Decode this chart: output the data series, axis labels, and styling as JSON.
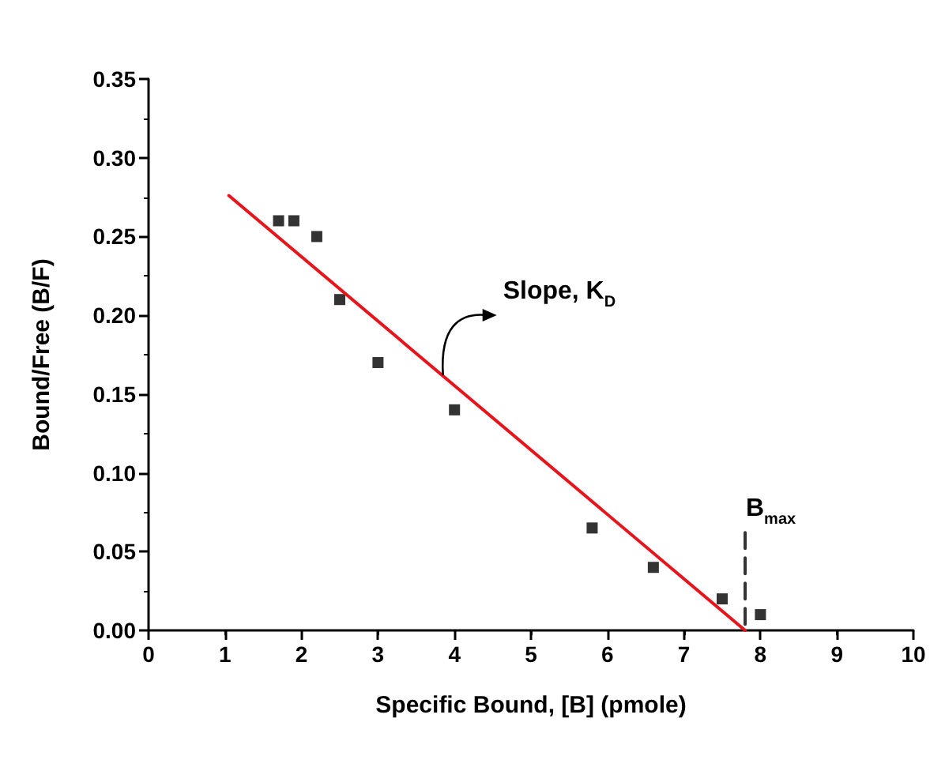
{
  "chart_data": {
    "type": "scatter",
    "xlabel": "Specific Bound, [B] (pmole)",
    "ylabel": "Bound/Free (B/F)",
    "xlim": [
      0,
      10
    ],
    "xticks": [
      0,
      1,
      2,
      3,
      4,
      5,
      6,
      7,
      8,
      9,
      10
    ],
    "ylim": [
      0,
      0.35
    ],
    "yticks": [
      {
        "value": 0,
        "label": "0.00"
      },
      {
        "value": 0.05,
        "label": "0.05"
      },
      {
        "value": 0.1,
        "label": "0.10"
      },
      {
        "value": 0.15,
        "label": "0.15"
      },
      {
        "value": 0.2,
        "label": "0.20"
      },
      {
        "value": 0.25,
        "label": "0.25"
      },
      {
        "value": 0.3,
        "label": "0.30"
      },
      {
        "value": 0.35,
        "label": "0.35"
      }
    ],
    "grid": false,
    "series": [
      {
        "marker": "square",
        "color": "#000000",
        "x": [
          1.7,
          1.9,
          2.2,
          2.5,
          3.0,
          4.0,
          5.8,
          6.6,
          7.5,
          8.0
        ],
        "values": [
          0.26,
          0.26,
          0.25,
          0.21,
          0.17,
          0.14,
          0.065,
          0.04,
          0.02,
          0.01
        ]
      },
      {
        "type": "line",
        "marker": "none",
        "color": "#e8141c",
        "x": [
          1.05,
          7.8
        ],
        "values": [
          0.276,
          0
        ]
      },
      {
        "type": "line",
        "marker": "none",
        "color": "#333333",
        "line_style": "dashed",
        "x": [
          7.8,
          7.8
        ],
        "values": [
          0.062,
          0.003
        ]
      }
    ],
    "annotations": [
      {
        "text": "Slope, K$_{D}$",
        "x": 3.85,
        "y": 0.162
      },
      "B$_{max}$"
    ]
  }
}
